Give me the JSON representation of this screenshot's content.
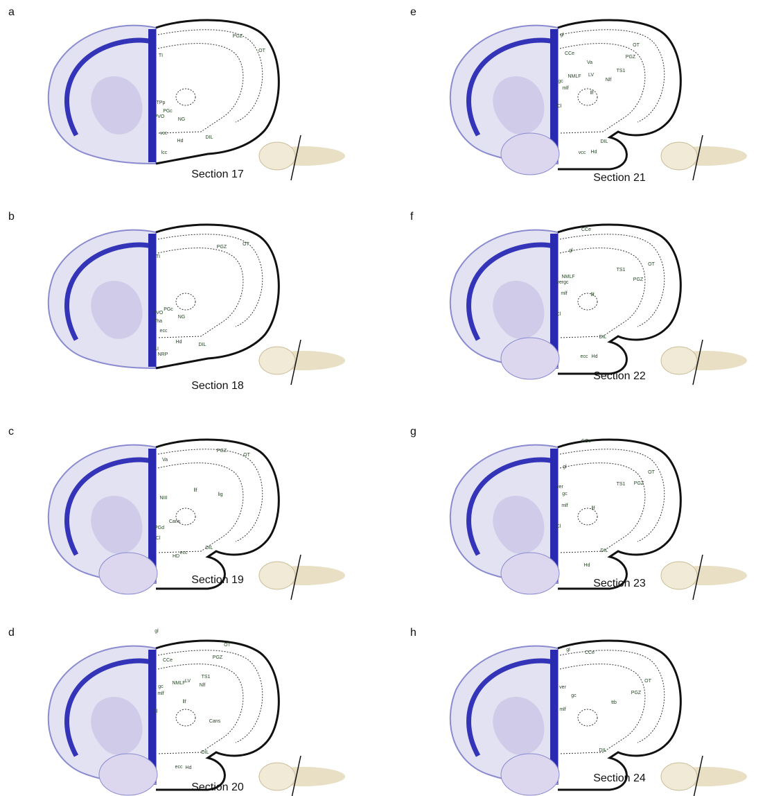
{
  "panels": [
    {
      "letter": "a",
      "section": "Section 17",
      "regions": [
        "TI",
        "PGZ",
        "OT",
        "TPp",
        "PGc",
        "PVO",
        "NG",
        "vcc",
        "Hd",
        "DIL",
        "lcc"
      ]
    },
    {
      "letter": "b",
      "section": "Section 18",
      "regions": [
        "TI",
        "PGZ",
        "OT",
        "PVO",
        "PGc",
        "Tha",
        "NG",
        "ecc",
        "Hd",
        "DIL",
        "LI",
        "NRP"
      ]
    },
    {
      "letter": "c",
      "section": "Section 19",
      "regions": [
        "Va",
        "PGZ",
        "OT",
        "llf",
        "lig",
        "NIII",
        "Cans",
        "PGd",
        "Cl",
        "HD",
        "DIL",
        "ecc"
      ]
    },
    {
      "letter": "d",
      "section": "Section 20",
      "regions": [
        "gl",
        "OT",
        "PGZ",
        "CCe",
        "LV",
        "TS1",
        "NMLF",
        "gc",
        "mlf",
        "Nlf",
        "llf",
        "Cl",
        "Cans",
        "DIL",
        "ecc",
        "Hd"
      ]
    },
    {
      "letter": "e",
      "section": "Section 21",
      "regions": [
        "gl",
        "OT",
        "Va",
        "PGZ",
        "CCe",
        "LV",
        "TS1",
        "NMLF",
        "Nlf",
        "gc",
        "mlf",
        "llf",
        "Cl",
        "DIL",
        "vcc",
        "Hd"
      ]
    },
    {
      "letter": "f",
      "section": "Section 22",
      "regions": [
        "CCe",
        "gl",
        "OT",
        "TS1",
        "PGZ",
        "NMLF",
        "vergc",
        "mlf",
        "llf",
        "Cl",
        "DIL",
        "ecc",
        "Hd"
      ]
    },
    {
      "letter": "g",
      "section": "Section 23",
      "regions": [
        "CCe",
        "gl",
        "OT",
        "PGZ",
        "TS1",
        "ver",
        "gc",
        "mlf",
        "llf",
        "Cl",
        "DIL",
        "Hd"
      ]
    },
    {
      "letter": "h",
      "section": "Section 24",
      "regions": [
        "gl",
        "CCe",
        "OT",
        "PGZ",
        "ver",
        "gc",
        "ttb",
        "mlf",
        "DIL"
      ]
    }
  ]
}
